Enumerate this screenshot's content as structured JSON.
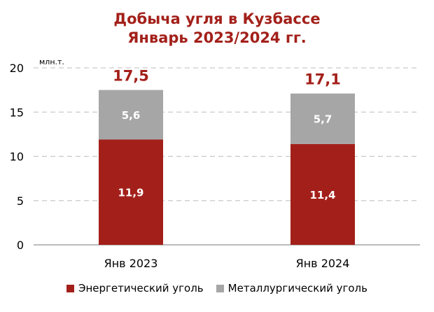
{
  "chart_data": {
    "type": "bar",
    "stacked": true,
    "title": [
      "Добыча угля в Кузбассе",
      "Январь 2023/2024 гг."
    ],
    "unit_label": "млн.т.",
    "categories": [
      "Янв 2023",
      "Янв 2024"
    ],
    "series": [
      {
        "name": "Энергетический уголь",
        "values": [
          11.9,
          11.4
        ],
        "labels": [
          "11,9",
          "11,4"
        ],
        "color": "#a3201a"
      },
      {
        "name": "Металлургический уголь",
        "values": [
          5.6,
          5.7
        ],
        "labels": [
          "5,6",
          "5,7"
        ],
        "color": "#a6a6a6"
      }
    ],
    "totals": [
      17.5,
      17.1
    ],
    "total_labels": [
      "17,5",
      "17,1"
    ],
    "ylim": [
      0,
      20
    ],
    "yticks": [
      0,
      5,
      10,
      15,
      20
    ],
    "grid": true,
    "legend_position": "bottom"
  }
}
